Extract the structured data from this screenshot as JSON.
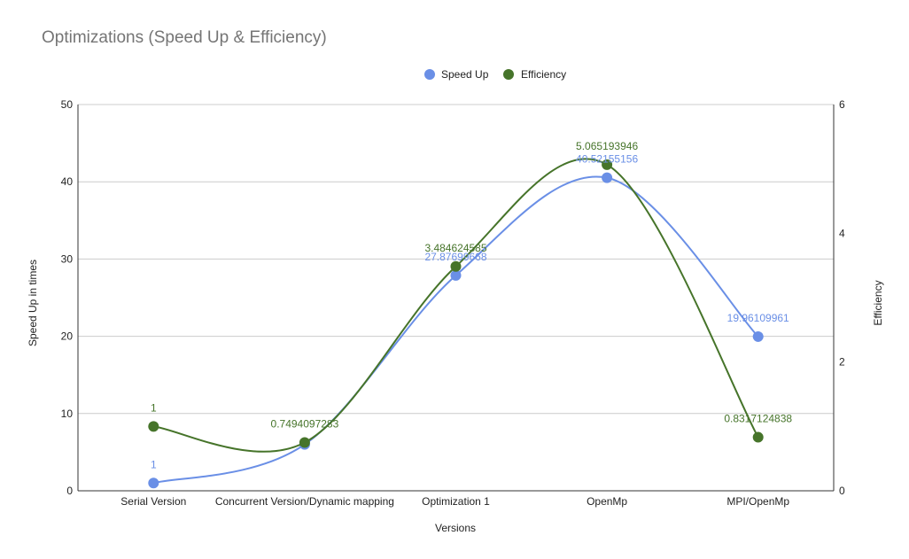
{
  "chart_data": {
    "type": "line",
    "title": "Optimizations (Speed Up & Efficiency)",
    "xlabel": "Versions",
    "ylabel_left": "Speed Up in times",
    "ylabel_right": "Efficiency",
    "categories": [
      "Serial Version",
      "Concurrent Version/Dynamic mapping",
      "Optimization 1",
      "OpenMp",
      "MPI/OpenMp"
    ],
    "y_left": {
      "min": 0,
      "max": 50,
      "ticks": [
        0,
        10,
        20,
        30,
        40,
        50
      ]
    },
    "y_right": {
      "min": 0,
      "max": 6,
      "ticks": [
        0,
        2,
        4,
        6
      ]
    },
    "grid": true,
    "legend_position": "top",
    "series": [
      {
        "name": "Speed Up",
        "axis": "left",
        "color": "#6a8fe6",
        "values": [
          1,
          6,
          27.87699668,
          40.52155156,
          19.96109961
        ],
        "labels": [
          "1",
          "",
          "27.87699668",
          "40.52155156",
          "19.96109961"
        ]
      },
      {
        "name": "Efficiency",
        "axis": "right",
        "color": "#46742a",
        "values": [
          1,
          0.7494097283,
          3.484624585,
          5.065193946,
          0.8317124838
        ],
        "labels": [
          "1",
          "0.7494097283",
          "3.484624585",
          "5.065193946",
          "0.8317124838"
        ]
      }
    ]
  }
}
